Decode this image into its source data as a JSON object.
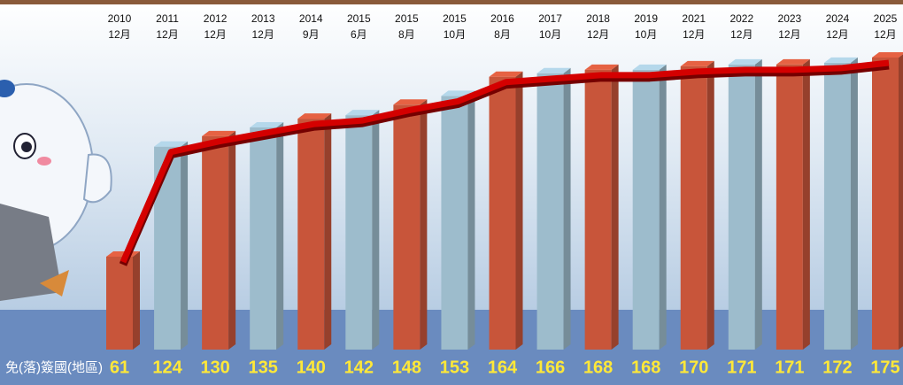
{
  "chart_data": {
    "type": "bar",
    "categories": [
      [
        "2010",
        "12月"
      ],
      [
        "2011",
        "12月"
      ],
      [
        "2012",
        "12月"
      ],
      [
        "2013",
        "12月"
      ],
      [
        "2014",
        "9月"
      ],
      [
        "2015",
        "6月"
      ],
      [
        "2015",
        "8月"
      ],
      [
        "2015",
        "10月"
      ],
      [
        "2016",
        "8月"
      ],
      [
        "2017",
        "10月"
      ],
      [
        "2018",
        "12月"
      ],
      [
        "2019",
        "10月"
      ],
      [
        "2021",
        "12月"
      ],
      [
        "2022",
        "12月"
      ],
      [
        "2023",
        "12月"
      ],
      [
        "2024",
        "12月"
      ],
      [
        "2025",
        "12月"
      ]
    ],
    "values": [
      61,
      124,
      130,
      135,
      140,
      142,
      148,
      153,
      164,
      166,
      168,
      168,
      170,
      171,
      171,
      172,
      175
    ],
    "row_label": "免(落)簽國(地區)",
    "colors": [
      "#c8553a",
      "#9dbccc"
    ],
    "line_color": "#d40000"
  }
}
